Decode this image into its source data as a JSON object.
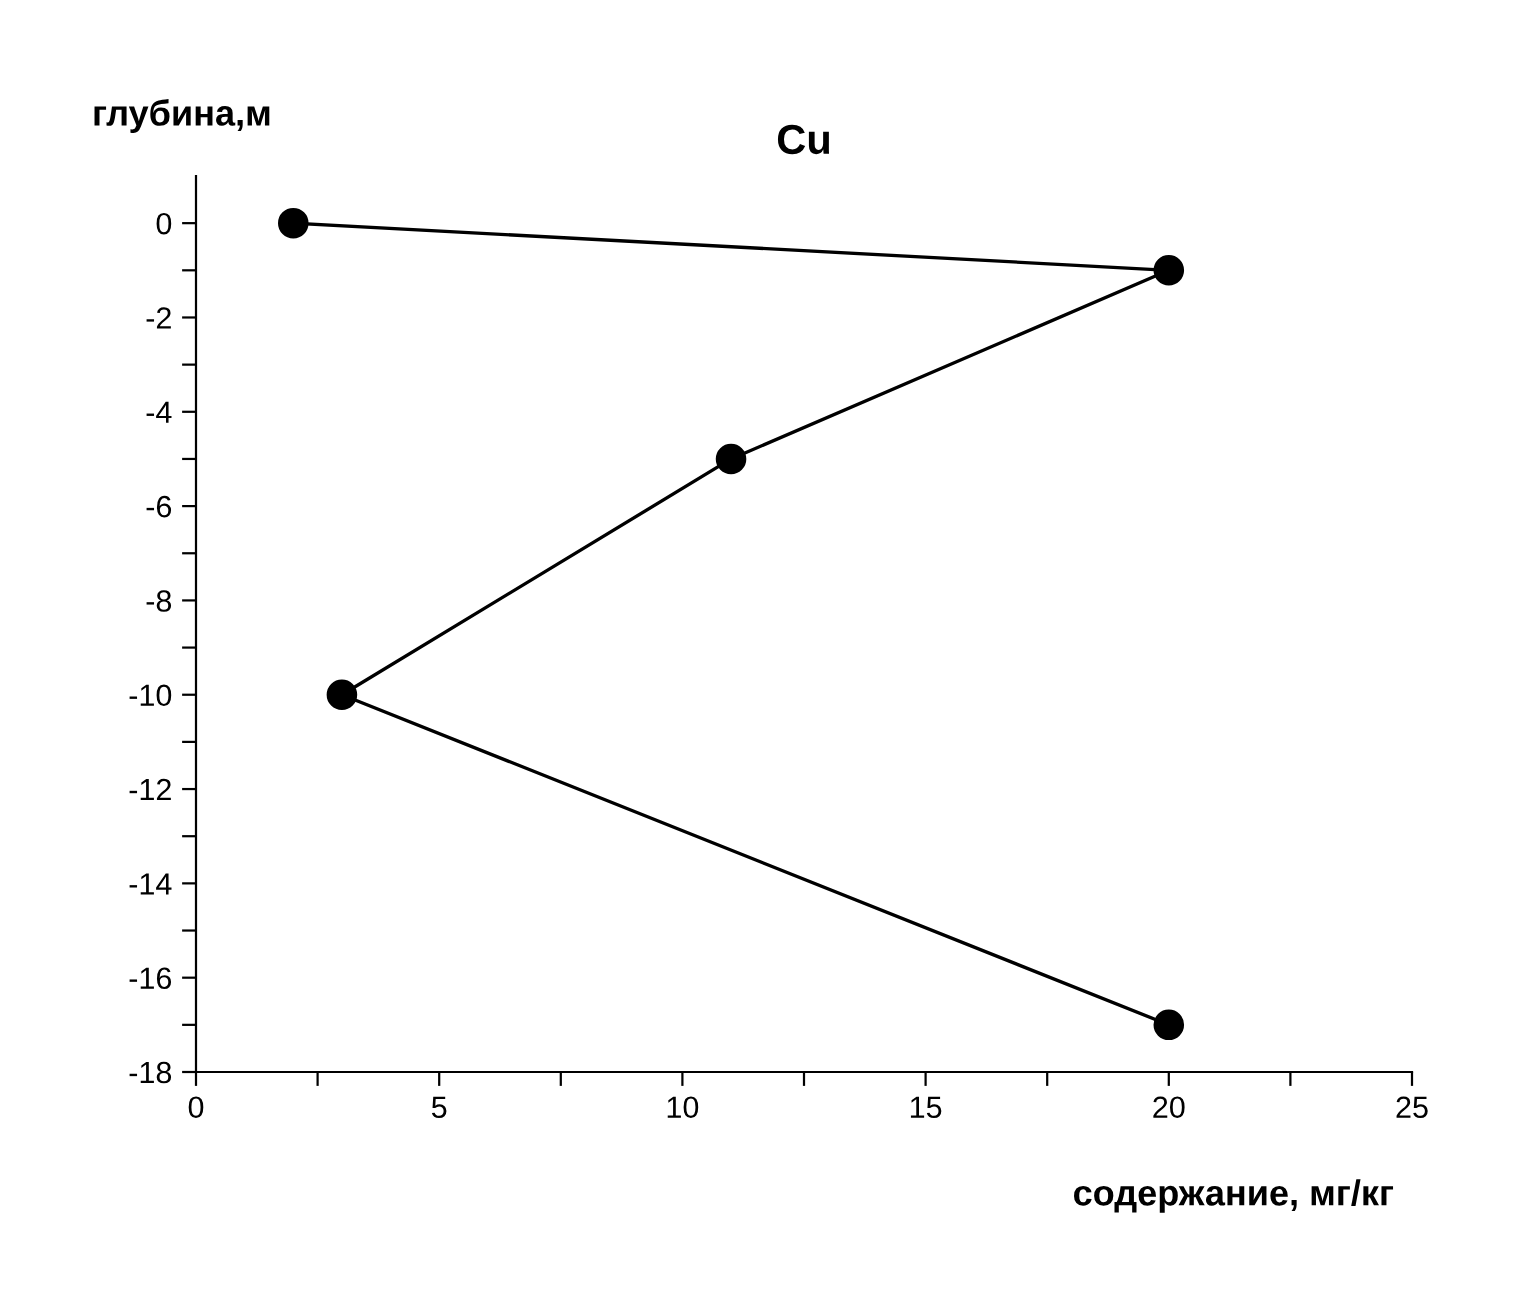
{
  "chart_data": {
    "type": "line",
    "title": "Cu",
    "xlabel": "содержание, мг/кг",
    "ylabel": "глубина,м",
    "x": [
      2,
      20,
      11,
      3,
      20
    ],
    "series": [
      {
        "color": "#000000",
        "values": [
          0,
          -1,
          -5,
          -10,
          -17
        ]
      }
    ],
    "marker": "circle",
    "line_style": "solid",
    "grid": false,
    "legend": false,
    "xlim": [
      0,
      25
    ],
    "ylim": [
      -18,
      1
    ],
    "xticks": [
      0,
      {
        "value": 2.5,
        "label": null
      },
      5,
      {
        "value": 7.5,
        "label": null
      },
      10,
      {
        "value": 12.5,
        "label": null
      },
      15,
      {
        "value": 17.5,
        "label": null
      },
      20,
      {
        "value": 22.5,
        "label": null
      },
      25
    ],
    "yticks": [
      -18,
      {
        "value": -17,
        "label": null
      },
      -16,
      {
        "value": -15,
        "label": null
      },
      -14,
      {
        "value": -13,
        "label": null
      },
      -12,
      {
        "value": -11,
        "label": null
      },
      -10,
      {
        "value": -9,
        "label": null
      },
      -8,
      {
        "value": -7,
        "label": null
      },
      -6,
      {
        "value": -5,
        "label": null
      },
      -4,
      {
        "value": -3,
        "label": null
      },
      -2,
      {
        "value": -1,
        "label": null
      },
      0
    ]
  }
}
